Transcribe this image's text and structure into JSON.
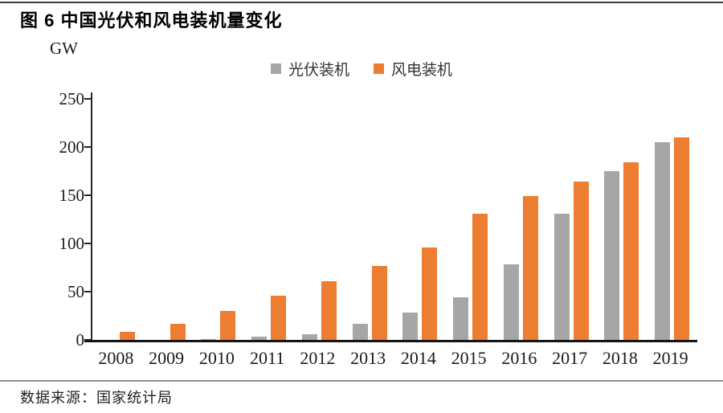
{
  "page": {
    "title": "图 6 中国光伏和风电装机量变化",
    "source": "数据来源：国家统计局"
  },
  "chart_data": {
    "type": "bar",
    "title": "图 6 中国光伏和风电装机量变化",
    "unit_label": "GW",
    "categories": [
      "2008",
      "2009",
      "2010",
      "2011",
      "2012",
      "2013",
      "2014",
      "2015",
      "2016",
      "2017",
      "2018",
      "2019"
    ],
    "series": [
      {
        "name": "光伏装机",
        "slug": "pv",
        "color": "#A6A6A6",
        "values": [
          0,
          0,
          1,
          3,
          6,
          17,
          28,
          44,
          78,
          131,
          175,
          205
        ]
      },
      {
        "name": "风电装机",
        "slug": "wind",
        "color": "#ED7D31",
        "values": [
          8,
          17,
          30,
          46,
          61,
          77,
          96,
          131,
          149,
          164,
          184,
          210
        ]
      }
    ],
    "ylabel": "GW",
    "xlabel": "",
    "ylim": [
      0,
      250
    ],
    "yticks": [
      0,
      50,
      100,
      150,
      200,
      250
    ],
    "grid": false,
    "legend_position": "top-center",
    "source": "数据来源：国家统计局"
  }
}
